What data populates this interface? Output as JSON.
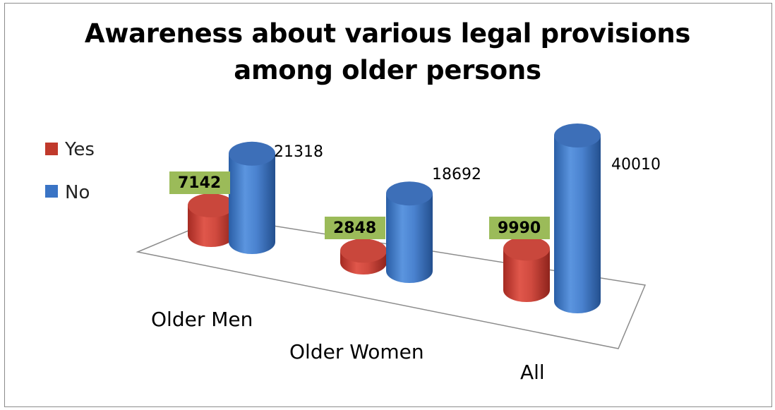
{
  "chart_data": {
    "type": "bar",
    "title": "Awareness about various legal provisions among older persons",
    "title_lines": [
      "Awareness about various legal provisions",
      "among older persons"
    ],
    "categories": [
      "Older Men",
      "Older Women",
      "All"
    ],
    "series": [
      {
        "name": "Yes",
        "values": [
          7142,
          2848,
          9990
        ],
        "color": "#c0392b"
      },
      {
        "name": "No",
        "values": [
          21318,
          18692,
          40010
        ],
        "color": "#3a74c5"
      }
    ],
    "data_labels": {
      "Yes": [
        "7142",
        "2848",
        "9990"
      ],
      "No": [
        "21318",
        "18692",
        "40010"
      ]
    },
    "legend_position": "left",
    "highlight_color": "#9bbb59",
    "style": "3d-cylinder"
  }
}
